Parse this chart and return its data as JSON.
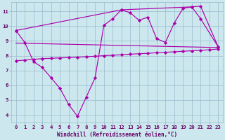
{
  "bg_color": "#cce8ee",
  "line_color": "#aa00aa",
  "grid_color": "#99bbcc",
  "text_color": "#660066",
  "xlabel": "Windchill (Refroidissement éolien,°C)",
  "xmin": -0.5,
  "xmax": 23.5,
  "ymin": 3.5,
  "ymax": 11.6,
  "yticks": [
    4,
    5,
    6,
    7,
    8,
    9,
    10,
    11
  ],
  "xticks": [
    0,
    1,
    2,
    3,
    4,
    5,
    6,
    7,
    8,
    9,
    10,
    11,
    12,
    13,
    14,
    15,
    16,
    17,
    18,
    19,
    20,
    21,
    22,
    23
  ],
  "zigzag_x": [
    0,
    1,
    2,
    3,
    4,
    5,
    6,
    7,
    8,
    9,
    10,
    11,
    12,
    13,
    14,
    15,
    16,
    17,
    18,
    19,
    20,
    21,
    23
  ],
  "zigzag_y": [
    9.7,
    8.9,
    7.6,
    7.2,
    6.5,
    5.8,
    4.7,
    3.9,
    5.2,
    6.5,
    10.05,
    10.5,
    11.1,
    10.9,
    10.4,
    10.6,
    9.15,
    8.9,
    10.2,
    11.2,
    11.3,
    10.5,
    8.6
  ],
  "trend1_x": [
    0,
    1,
    2,
    3,
    4,
    5,
    6,
    7,
    8,
    9,
    10,
    11,
    12,
    13,
    14,
    15,
    16,
    17,
    18,
    19,
    20,
    21,
    22,
    23
  ],
  "trend1_y": [
    7.65,
    7.7,
    7.75,
    7.8,
    7.82,
    7.85,
    7.87,
    7.9,
    7.93,
    7.96,
    8.0,
    8.03,
    8.06,
    8.1,
    8.13,
    8.16,
    8.2,
    8.23,
    8.26,
    8.3,
    8.33,
    8.36,
    8.4,
    8.45
  ],
  "trend2_x": [
    0,
    23
  ],
  "trend2_y": [
    8.85,
    8.55
  ],
  "upper_x": [
    0,
    12,
    20,
    21,
    23
  ],
  "upper_y": [
    9.7,
    11.1,
    11.3,
    11.35,
    8.6
  ]
}
